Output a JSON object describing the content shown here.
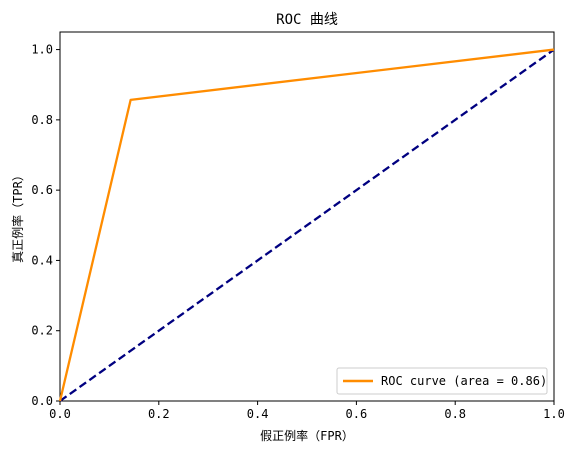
{
  "chart_data": {
    "type": "line",
    "title": "ROC 曲线",
    "xlabel": "假正例率（FPR）",
    "ylabel": "真正例率（TPR）",
    "xlim": [
      0.0,
      1.0
    ],
    "ylim": [
      0.0,
      1.05
    ],
    "xticks": [
      "0.0",
      "0.2",
      "0.4",
      "0.6",
      "0.8",
      "1.0"
    ],
    "yticks": [
      "0.0",
      "0.2",
      "0.4",
      "0.6",
      "0.8",
      "1.0"
    ],
    "grid": false,
    "legend_position": "lower-right",
    "series": [
      {
        "name": "ROC curve (area = 0.86)",
        "color": "#ff8c00",
        "style": "solid",
        "x": [
          0.0,
          0.143,
          1.0
        ],
        "y": [
          0.0,
          0.857,
          1.0
        ]
      },
      {
        "color": "#000080",
        "style": "dashed",
        "x": [
          0.0,
          1.0
        ],
        "y": [
          0.0,
          1.0
        ]
      }
    ]
  }
}
